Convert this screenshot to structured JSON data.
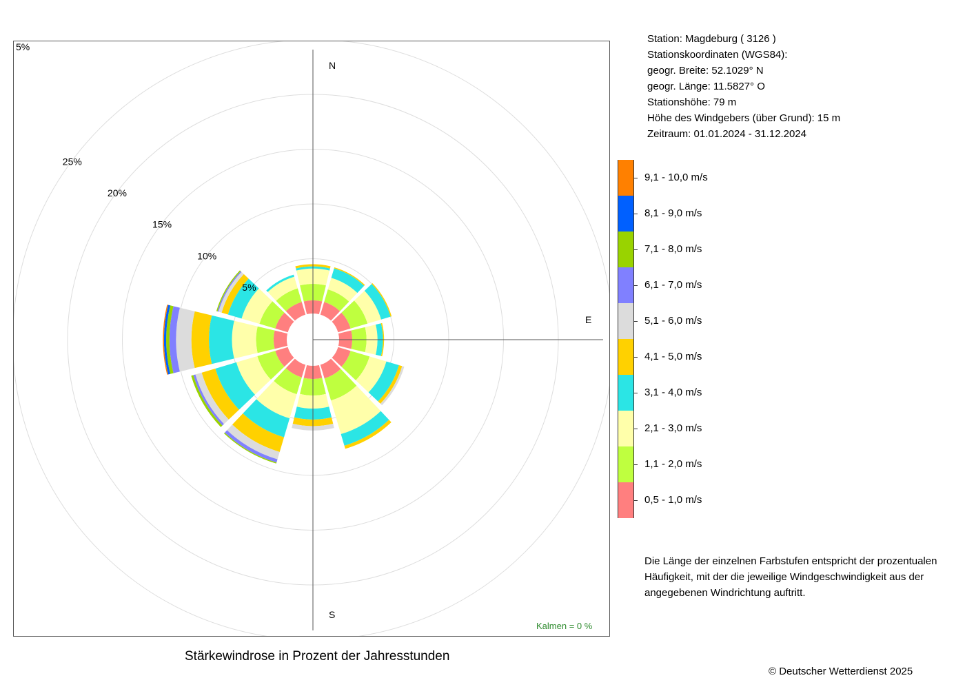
{
  "title": "Stärkewindrose in Prozent der Jahresstunden",
  "station": {
    "line1": "Station:  Magdeburg  ( 3126 )",
    "line2": "Stationskoordinaten (WGS84):",
    "line3": "geogr. Breite: 52.1029° N",
    "line4": "geogr. Länge: 11.5827° O",
    "line5": "Stationshöhe: 79 m",
    "line6": "Höhe des Windgebers (über Grund): 15 m",
    "line7": "Zeitraum: 01.01.2024 - 31.12.2024"
  },
  "explanation": "Die Länge der einzelnen Farbstufen entspricht der prozentualen Häufigkeit, mit der die jeweilige Windgeschwindigkeit aus der angegebenen Windrichtung auftritt.",
  "copyright": "© Deutscher Wetterdienst  2025",
  "calm_label": "Kalmen  =  0 %",
  "compass": {
    "n": "N",
    "e": "E",
    "s": "S"
  },
  "ring_labels": [
    "5%",
    "10%",
    "15%",
    "20%",
    "25%"
  ],
  "corner_label": "5%",
  "chart_data": {
    "type": "windrose",
    "unit": "%",
    "directions_deg": [
      0,
      30,
      60,
      90,
      120,
      150,
      180,
      210,
      240,
      270,
      300,
      330
    ],
    "rings": [
      5,
      10,
      15,
      20,
      25
    ],
    "speed_classes": [
      {
        "label": "0,5 - 1,0 m/s",
        "color": "#ff7f7f"
      },
      {
        "label": "1,1 - 2,0 m/s",
        "color": "#bfff3f"
      },
      {
        "label": "2,1 - 3,0 m/s",
        "color": "#ffffaa"
      },
      {
        "label": "3,1 - 4,0 m/s",
        "color": "#2be5e5"
      },
      {
        "label": "4,1 - 5,0 m/s",
        "color": "#ffd100"
      },
      {
        "label": "5,1 - 6,0 m/s",
        "color": "#dcdcdc"
      },
      {
        "label": "6,1 - 7,0 m/s",
        "color": "#8080ff"
      },
      {
        "label": "7,1 - 8,0 m/s",
        "color": "#99d300"
      },
      {
        "label": "8,1 - 9,0 m/s",
        "color": "#0060ff"
      },
      {
        "label": "9,1 - 10,0 m/s",
        "color": "#ff8000"
      }
    ],
    "series": [
      {
        "dir": 0,
        "values": [
          1.2,
          1.5,
          1.4,
          0.2,
          0.2,
          0.0,
          0.0,
          0.0,
          0.0,
          0.0
        ]
      },
      {
        "dir": 30,
        "values": [
          1.2,
          1.2,
          1.1,
          0.9,
          0.1,
          0.0,
          0.0,
          0.0,
          0.0,
          0.0
        ]
      },
      {
        "dir": 60,
        "values": [
          1.2,
          1.6,
          1.3,
          0.9,
          0.1,
          0.0,
          0.0,
          0.0,
          0.0,
          0.0
        ]
      },
      {
        "dir": 90,
        "values": [
          1.2,
          1.3,
          1.0,
          0.5,
          0.1,
          0.0,
          0.0,
          0.0,
          0.0,
          0.0
        ]
      },
      {
        "dir": 120,
        "values": [
          1.2,
          1.8,
          1.6,
          1.2,
          0.3,
          0.2,
          0.0,
          0.0,
          0.0,
          0.0
        ]
      },
      {
        "dir": 150,
        "values": [
          1.3,
          2.1,
          3.2,
          1.1,
          0.3,
          0.0,
          0.0,
          0.0,
          0.0,
          0.0
        ]
      },
      {
        "dir": 180,
        "values": [
          1.2,
          1.5,
          1.2,
          1.0,
          0.6,
          0.4,
          0.0,
          0.0,
          0.0,
          0.0
        ]
      },
      {
        "dir": 210,
        "values": [
          1.2,
          1.6,
          2.3,
          1.8,
          1.4,
          0.7,
          0.3,
          0.1,
          0.0,
          0.0
        ]
      },
      {
        "dir": 240,
        "values": [
          1.2,
          1.7,
          2.0,
          2.0,
          1.3,
          0.6,
          0.2,
          0.2,
          0.0,
          0.0
        ]
      },
      {
        "dir": 270,
        "values": [
          1.2,
          1.6,
          2.2,
          2.1,
          1.6,
          1.4,
          0.6,
          0.3,
          0.2,
          0.1
        ]
      },
      {
        "dir": 300,
        "values": [
          1.2,
          1.5,
          1.7,
          1.3,
          0.6,
          0.3,
          0.1,
          0.1,
          0.0,
          0.0
        ]
      },
      {
        "dir": 330,
        "values": [
          1.2,
          1.3,
          1.1,
          0.2,
          0.0,
          0.0,
          0.0,
          0.0,
          0.0,
          0.0
        ]
      }
    ]
  }
}
